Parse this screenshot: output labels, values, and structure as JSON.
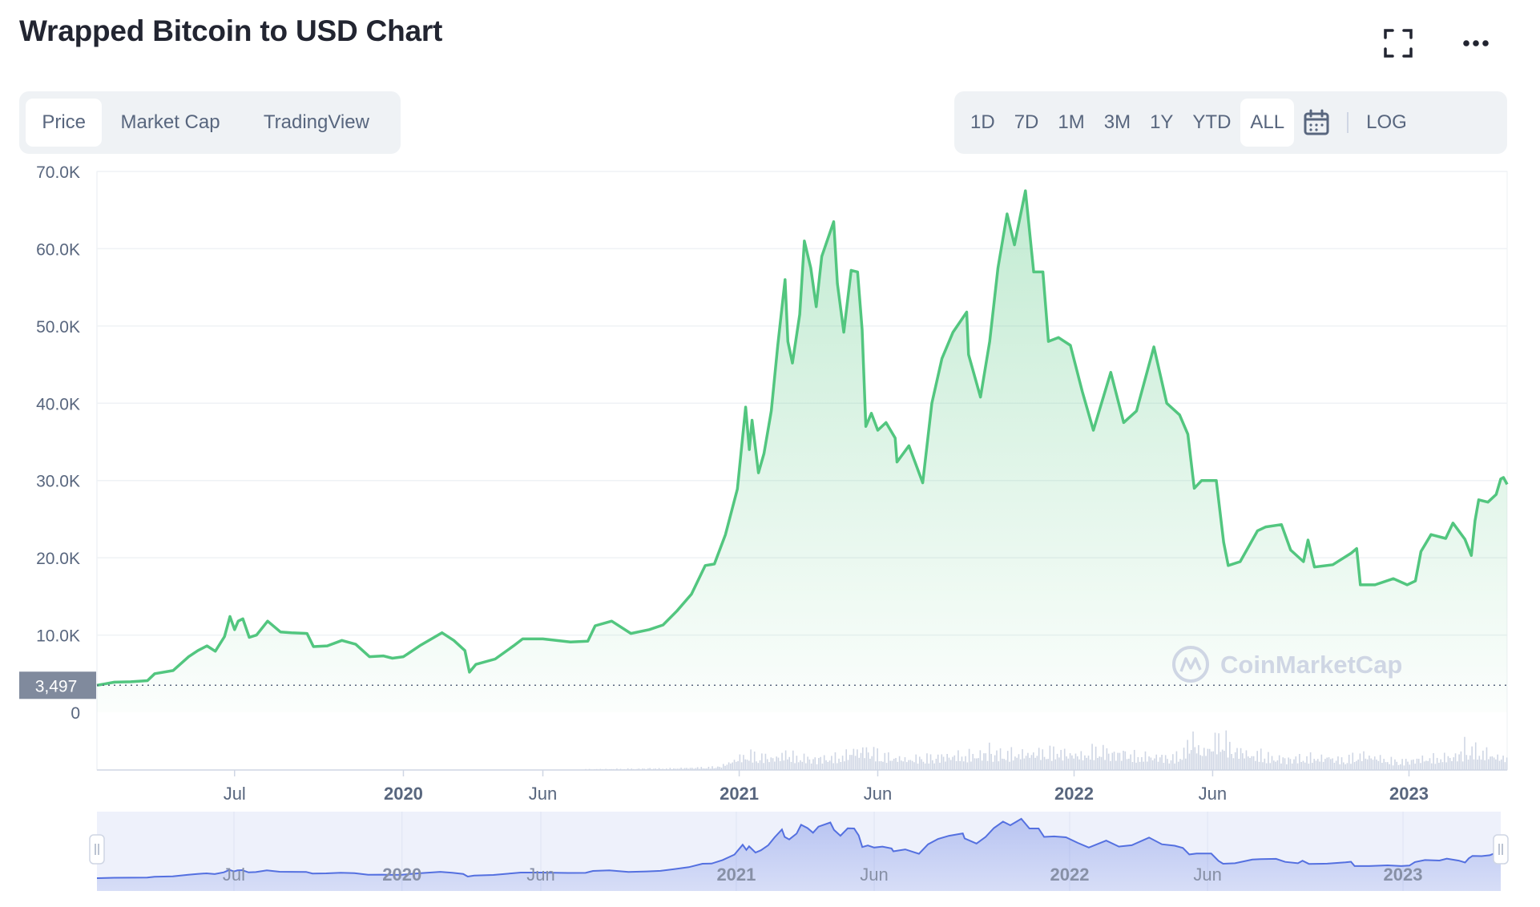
{
  "header": {
    "title": "Wrapped Bitcoin to USD Chart"
  },
  "view_tabs": [
    {
      "label": "Price",
      "active": true
    },
    {
      "label": "Market Cap",
      "active": false
    },
    {
      "label": "TradingView",
      "active": false
    }
  ],
  "range_tabs": [
    {
      "label": "1D",
      "active": false
    },
    {
      "label": "7D",
      "active": false
    },
    {
      "label": "1M",
      "active": false
    },
    {
      "label": "3M",
      "active": false
    },
    {
      "label": "1Y",
      "active": false
    },
    {
      "label": "YTD",
      "active": false
    },
    {
      "label": "ALL",
      "active": true
    }
  ],
  "log_label": "LOG",
  "icons": {
    "expand": "expand-icon",
    "more": "more-icon",
    "calendar": "calendar-icon"
  },
  "colors": {
    "line": "#52c67f",
    "volume": "#cfd6e4",
    "navigator": "#5470e0",
    "current_badge": "#808a9d"
  },
  "watermark": "CoinMarketCap",
  "chart_data": {
    "type": "area",
    "ylim": [
      0,
      70000
    ],
    "yticks": [
      {
        "value": 70000,
        "label": "70.0K"
      },
      {
        "value": 60000,
        "label": "60.0K"
      },
      {
        "value": 50000,
        "label": "50.0K"
      },
      {
        "value": 40000,
        "label": "40.0K"
      },
      {
        "value": 30000,
        "label": "30.0K"
      },
      {
        "value": 20000,
        "label": "20.0K"
      },
      {
        "value": 10000,
        "label": "10.0K"
      },
      {
        "value": 0,
        "label": "0"
      }
    ],
    "current_value": {
      "value": 3497,
      "label": "3,497"
    },
    "xlim": [
      "2019-02-01",
      "2023-04-18"
    ],
    "xticks": [
      {
        "date": "2019-07-01",
        "label": "Jul",
        "major": false
      },
      {
        "date": "2020-01-01",
        "label": "2020",
        "major": true
      },
      {
        "date": "2020-06-01",
        "label": "Jun",
        "major": false
      },
      {
        "date": "2021-01-01",
        "label": "2021",
        "major": true
      },
      {
        "date": "2021-06-01",
        "label": "Jun",
        "major": false
      },
      {
        "date": "2022-01-01",
        "label": "2022",
        "major": true
      },
      {
        "date": "2022-06-01",
        "label": "Jun",
        "major": false
      },
      {
        "date": "2023-01-01",
        "label": "2023",
        "major": true
      }
    ],
    "series": [
      {
        "values": [
          [
            "2019-02-01",
            3497
          ],
          [
            "2019-02-20",
            3900
          ],
          [
            "2019-03-10",
            3950
          ],
          [
            "2019-03-28",
            4100
          ],
          [
            "2019-04-05",
            5000
          ],
          [
            "2019-04-25",
            5400
          ],
          [
            "2019-05-12",
            7200
          ],
          [
            "2019-05-22",
            8000
          ],
          [
            "2019-06-01",
            8600
          ],
          [
            "2019-06-10",
            7900
          ],
          [
            "2019-06-20",
            9800
          ],
          [
            "2019-06-26",
            12400
          ],
          [
            "2019-07-01",
            10700
          ],
          [
            "2019-07-05",
            11800
          ],
          [
            "2019-07-10",
            12100
          ],
          [
            "2019-07-17",
            9700
          ],
          [
            "2019-07-25",
            10000
          ],
          [
            "2019-08-06",
            11800
          ],
          [
            "2019-08-20",
            10400
          ],
          [
            "2019-09-01",
            10300
          ],
          [
            "2019-09-18",
            10200
          ],
          [
            "2019-09-25",
            8500
          ],
          [
            "2019-10-10",
            8600
          ],
          [
            "2019-10-26",
            9300
          ],
          [
            "2019-11-10",
            8800
          ],
          [
            "2019-11-25",
            7200
          ],
          [
            "2019-12-10",
            7300
          ],
          [
            "2019-12-20",
            7000
          ],
          [
            "2020-01-01",
            7200
          ],
          [
            "2020-01-20",
            8700
          ],
          [
            "2020-02-12",
            10300
          ],
          [
            "2020-02-25",
            9300
          ],
          [
            "2020-03-08",
            8000
          ],
          [
            "2020-03-13",
            5200
          ],
          [
            "2020-03-20",
            6200
          ],
          [
            "2020-04-10",
            6900
          ],
          [
            "2020-04-30",
            8600
          ],
          [
            "2020-05-10",
            9500
          ],
          [
            "2020-06-01",
            9500
          ],
          [
            "2020-07-01",
            9100
          ],
          [
            "2020-07-20",
            9200
          ],
          [
            "2020-07-28",
            11200
          ],
          [
            "2020-08-15",
            11800
          ],
          [
            "2020-09-05",
            10200
          ],
          [
            "2020-09-25",
            10700
          ],
          [
            "2020-10-10",
            11300
          ],
          [
            "2020-10-25",
            13100
          ],
          [
            "2020-11-10",
            15300
          ],
          [
            "2020-11-25",
            19000
          ],
          [
            "2020-12-05",
            19200
          ],
          [
            "2020-12-17",
            23000
          ],
          [
            "2020-12-30",
            28900
          ],
          [
            "2021-01-08",
            39500
          ],
          [
            "2021-01-12",
            34000
          ],
          [
            "2021-01-15",
            37800
          ],
          [
            "2021-01-22",
            31000
          ],
          [
            "2021-01-28",
            33500
          ],
          [
            "2021-02-05",
            39000
          ],
          [
            "2021-02-12",
            47500
          ],
          [
            "2021-02-20",
            56000
          ],
          [
            "2021-02-23",
            48000
          ],
          [
            "2021-02-28",
            45200
          ],
          [
            "2021-03-08",
            51500
          ],
          [
            "2021-03-13",
            61000
          ],
          [
            "2021-03-20",
            57500
          ],
          [
            "2021-03-26",
            52500
          ],
          [
            "2021-04-01",
            59000
          ],
          [
            "2021-04-14",
            63500
          ],
          [
            "2021-04-18",
            55500
          ],
          [
            "2021-04-25",
            49200
          ],
          [
            "2021-05-03",
            57200
          ],
          [
            "2021-05-10",
            57000
          ],
          [
            "2021-05-15",
            49500
          ],
          [
            "2021-05-19",
            37000
          ],
          [
            "2021-05-25",
            38700
          ],
          [
            "2021-06-01",
            36500
          ],
          [
            "2021-06-10",
            37500
          ],
          [
            "2021-06-20",
            35500
          ],
          [
            "2021-06-22",
            32400
          ],
          [
            "2021-07-05",
            34500
          ],
          [
            "2021-07-20",
            29700
          ],
          [
            "2021-07-30",
            40000
          ],
          [
            "2021-08-10",
            45800
          ],
          [
            "2021-08-22",
            49200
          ],
          [
            "2021-09-06",
            51800
          ],
          [
            "2021-09-08",
            46300
          ],
          [
            "2021-09-21",
            40800
          ],
          [
            "2021-10-01",
            48000
          ],
          [
            "2021-10-10",
            57500
          ],
          [
            "2021-10-20",
            64500
          ],
          [
            "2021-10-28",
            60500
          ],
          [
            "2021-11-09",
            67500
          ],
          [
            "2021-11-18",
            57000
          ],
          [
            "2021-11-28",
            57000
          ],
          [
            "2021-12-04",
            48000
          ],
          [
            "2021-12-15",
            48500
          ],
          [
            "2021-12-28",
            47500
          ],
          [
            "2022-01-10",
            41500
          ],
          [
            "2022-01-22",
            36500
          ],
          [
            "2022-02-10",
            44000
          ],
          [
            "2022-02-24",
            37500
          ],
          [
            "2022-03-10",
            39000
          ],
          [
            "2022-03-29",
            47300
          ],
          [
            "2022-04-12",
            40000
          ],
          [
            "2022-04-26",
            38500
          ],
          [
            "2022-05-05",
            36000
          ],
          [
            "2022-05-12",
            29000
          ],
          [
            "2022-05-20",
            30000
          ],
          [
            "2022-06-05",
            30000
          ],
          [
            "2022-06-13",
            22000
          ],
          [
            "2022-06-18",
            19000
          ],
          [
            "2022-07-01",
            19500
          ],
          [
            "2022-07-20",
            23500
          ],
          [
            "2022-07-29",
            24000
          ],
          [
            "2022-08-15",
            24300
          ],
          [
            "2022-08-25",
            21000
          ],
          [
            "2022-09-08",
            19500
          ],
          [
            "2022-09-13",
            22300
          ],
          [
            "2022-09-20",
            18800
          ],
          [
            "2022-10-10",
            19100
          ],
          [
            "2022-10-30",
            20600
          ],
          [
            "2022-11-05",
            21200
          ],
          [
            "2022-11-09",
            16500
          ],
          [
            "2022-11-25",
            16500
          ],
          [
            "2022-12-15",
            17300
          ],
          [
            "2022-12-30",
            16500
          ],
          [
            "2023-01-08",
            17000
          ],
          [
            "2023-01-14",
            20800
          ],
          [
            "2023-01-25",
            23000
          ],
          [
            "2023-02-10",
            22500
          ],
          [
            "2023-02-18",
            24500
          ],
          [
            "2023-03-03",
            22400
          ],
          [
            "2023-03-10",
            20300
          ],
          [
            "2023-03-14",
            24800
          ],
          [
            "2023-03-18",
            27500
          ],
          [
            "2023-03-28",
            27200
          ],
          [
            "2023-04-06",
            28200
          ],
          [
            "2023-04-11",
            30200
          ],
          [
            "2023-04-14",
            30400
          ],
          [
            "2023-04-18",
            29500
          ]
        ]
      }
    ],
    "volume": [
      [
        "2020-07-15",
        0.02
      ],
      [
        "2020-09-01",
        0.03
      ],
      [
        "2020-10-20",
        0.04
      ],
      [
        "2020-12-10",
        0.08
      ],
      [
        "2021-01-10",
        0.42
      ],
      [
        "2021-02-05",
        0.32
      ],
      [
        "2021-02-25",
        0.38
      ],
      [
        "2021-03-20",
        0.3
      ],
      [
        "2021-04-15",
        0.34
      ],
      [
        "2021-05-12",
        0.48
      ],
      [
        "2021-05-19",
        0.55
      ],
      [
        "2021-06-10",
        0.36
      ],
      [
        "2021-07-01",
        0.28
      ],
      [
        "2021-08-01",
        0.35
      ],
      [
        "2021-09-07",
        0.4
      ],
      [
        "2021-10-15",
        0.45
      ],
      [
        "2021-11-10",
        0.42
      ],
      [
        "2021-12-04",
        0.5
      ],
      [
        "2022-01-10",
        0.38
      ],
      [
        "2022-01-24",
        0.55
      ],
      [
        "2022-02-25",
        0.4
      ],
      [
        "2022-03-20",
        0.36
      ],
      [
        "2022-04-20",
        0.34
      ],
      [
        "2022-05-10",
        0.7
      ],
      [
        "2022-05-20",
        0.45
      ],
      [
        "2022-06-13",
        0.95
      ],
      [
        "2022-06-18",
        0.6
      ],
      [
        "2022-07-15",
        0.38
      ],
      [
        "2022-08-20",
        0.3
      ],
      [
        "2022-09-13",
        0.34
      ],
      [
        "2022-10-20",
        0.28
      ],
      [
        "2022-11-09",
        0.4
      ],
      [
        "2022-12-20",
        0.22
      ],
      [
        "2023-01-14",
        0.3
      ],
      [
        "2023-02-15",
        0.35
      ],
      [
        "2023-03-13",
        0.55
      ],
      [
        "2023-04-10",
        0.32
      ]
    ],
    "navigator": {
      "xticks": [
        {
          "date": "2019-07-01",
          "label": "Jul"
        },
        {
          "date": "2020-01-01",
          "label": "2020"
        },
        {
          "date": "2020-06-01",
          "label": "Jun"
        },
        {
          "date": "2021-01-01",
          "label": "2021"
        },
        {
          "date": "2021-06-01",
          "label": "Jun"
        },
        {
          "date": "2022-01-01",
          "label": "2022"
        },
        {
          "date": "2022-06-01",
          "label": "Jun"
        },
        {
          "date": "2023-01-01",
          "label": "2023"
        }
      ]
    }
  }
}
